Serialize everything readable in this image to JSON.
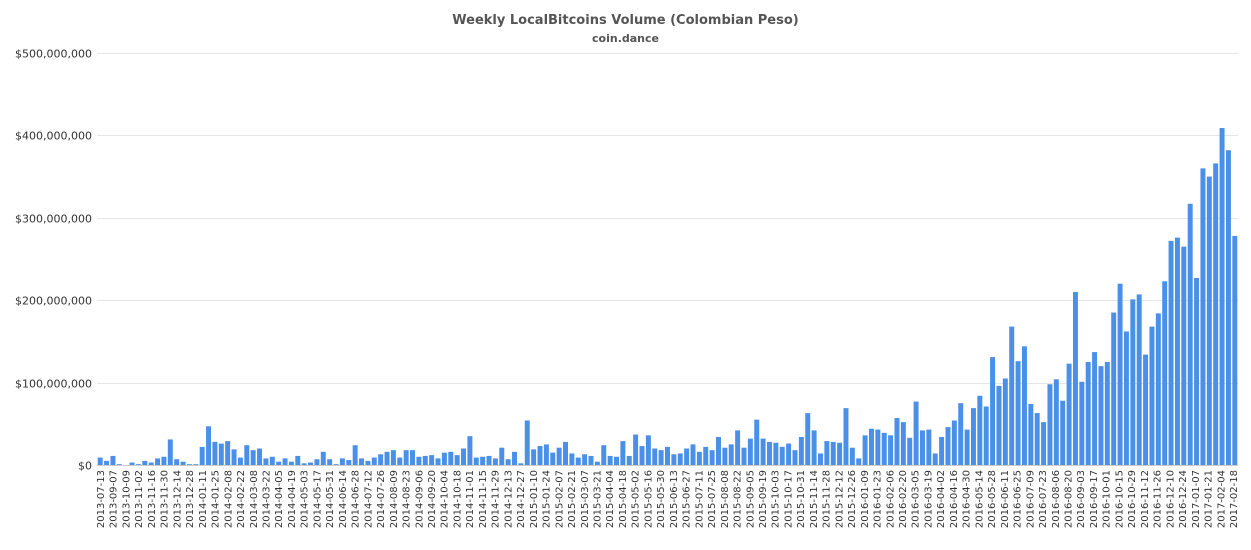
{
  "chart_data": {
    "type": "bar",
    "title": "Weekly LocalBitcoins Volume (Colombian Peso)",
    "subtitle": "coin.dance",
    "xlabel": "",
    "ylabel": "",
    "ylim": [
      0,
      500000000
    ],
    "y_ticks": [
      "$0",
      "$100,000,000",
      "$200,000,000",
      "$300,000,000",
      "$400,000,000",
      "$500,000,000"
    ],
    "y_tick_values": [
      0,
      100000000,
      200000000,
      300000000,
      400000000,
      500000000
    ],
    "grid": true,
    "legend": "none",
    "bar_color": "#4a90e8",
    "x_tick_labels": [
      "2013-07-13",
      "2013-09-07",
      "2013-10-09",
      "2013-11-02",
      "2013-11-16",
      "2013-11-30",
      "2013-12-14",
      "2013-12-28",
      "2014-01-11",
      "2014-01-25",
      "2014-02-08",
      "2014-02-22",
      "2014-03-08",
      "2014-03-22",
      "2014-04-05",
      "2014-04-19",
      "2014-05-03",
      "2014-05-17",
      "2014-05-31",
      "2014-06-14",
      "2014-06-28",
      "2014-07-12",
      "2014-07-26",
      "2014-08-09",
      "2014-08-23",
      "2014-09-06",
      "2014-09-20",
      "2014-10-04",
      "2014-10-18",
      "2014-11-01",
      "2014-11-15",
      "2014-11-29",
      "2014-12-13",
      "2014-12-27",
      "2015-01-10",
      "2015-01-24",
      "2015-02-07",
      "2015-02-21",
      "2015-03-07",
      "2015-03-21",
      "2015-04-04",
      "2015-04-18",
      "2015-05-02",
      "2015-05-16",
      "2015-05-30",
      "2015-06-13",
      "2015-06-27",
      "2015-07-11",
      "2015-07-25",
      "2015-08-08",
      "2015-08-22",
      "2015-09-05",
      "2015-09-19",
      "2015-10-03",
      "2015-10-17",
      "2015-10-31",
      "2015-11-14",
      "2015-11-28",
      "2015-12-12",
      "2015-12-26",
      "2016-01-09",
      "2016-01-23",
      "2016-02-06",
      "2016-02-20",
      "2016-03-05",
      "2016-03-19",
      "2016-04-02",
      "2016-04-16",
      "2016-04-30",
      "2016-05-14",
      "2016-05-28",
      "2016-06-11",
      "2016-06-25",
      "2016-07-09",
      "2016-07-23",
      "2016-08-06",
      "2016-08-20",
      "2016-09-03",
      "2016-09-17",
      "2016-10-01",
      "2016-10-15",
      "2016-10-29",
      "2016-11-12",
      "2016-11-26",
      "2016-12-10",
      "2016-12-24",
      "2017-01-07",
      "2017-01-21",
      "2017-02-04",
      "2017-02-18"
    ],
    "values": [
      9000000,
      5000000,
      11000000,
      1000000,
      0,
      3000000,
      1000000,
      5000000,
      3000000,
      8000000,
      10000000,
      31000000,
      7000000,
      4000000,
      1000000,
      1000000,
      22000000,
      47000000,
      28000000,
      26000000,
      29000000,
      19000000,
      9000000,
      24000000,
      18000000,
      20000000,
      8000000,
      10000000,
      4000000,
      8000000,
      4000000,
      11000000,
      2000000,
      3000000,
      7000000,
      16000000,
      7000000,
      1000000,
      8000000,
      6000000,
      24000000,
      8000000,
      5000000,
      9000000,
      13000000,
      16000000,
      18000000,
      9000000,
      18000000,
      18000000,
      10000000,
      11000000,
      12000000,
      8000000,
      15000000,
      16000000,
      12000000,
      20000000,
      35000000,
      9000000,
      10000000,
      11000000,
      8000000,
      21000000,
      7000000,
      16000000,
      2000000,
      54000000,
      19000000,
      23000000,
      25000000,
      15000000,
      21000000,
      28000000,
      14000000,
      9000000,
      13000000,
      11000000,
      4000000,
      24000000,
      11000000,
      10000000,
      29000000,
      11000000,
      37000000,
      23000000,
      36000000,
      20000000,
      18000000,
      22000000,
      13000000,
      14000000,
      20000000,
      25000000,
      16000000,
      22000000,
      18000000,
      34000000,
      21000000,
      25000000,
      42000000,
      21000000,
      32000000,
      55000000,
      32000000,
      28000000,
      27000000,
      22000000,
      26000000,
      18000000,
      34000000,
      63000000,
      42000000,
      14000000,
      29000000,
      28000000,
      27000000,
      69000000,
      21000000,
      8000000,
      36000000,
      44000000,
      43000000,
      39000000,
      36000000,
      57000000,
      52000000,
      33000000,
      77000000,
      42000000,
      43000000,
      14000000,
      34000000,
      46000000,
      54000000,
      75000000,
      43000000,
      69000000,
      84000000,
      71000000,
      131000000,
      96000000,
      105000000,
      168000000,
      126000000,
      144000000,
      74000000,
      63000000,
      52000000,
      98000000,
      104000000,
      78000000,
      123000000,
      210000000,
      101000000,
      125000000,
      137000000,
      120000000,
      125000000,
      185000000,
      220000000,
      162000000,
      201000000,
      207000000,
      134000000,
      168000000,
      184000000,
      223000000,
      272000000,
      276000000,
      265000000,
      317000000,
      227000000,
      360000000,
      350000000,
      366000000,
      409000000,
      382000000,
      278000000
    ]
  }
}
